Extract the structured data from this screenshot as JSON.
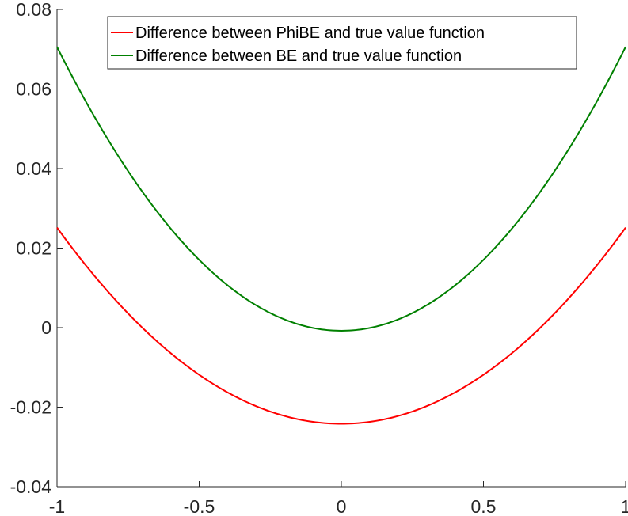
{
  "chart_data": {
    "type": "line",
    "title": "",
    "xlabel": "",
    "ylabel": "",
    "xlim": [
      -1,
      1
    ],
    "ylim": [
      -0.04,
      0.08
    ],
    "xticks": [
      -1,
      -0.5,
      0,
      0.5,
      1
    ],
    "xtick_labels": [
      "-1",
      "-0.5",
      "0",
      "0.5",
      "1"
    ],
    "yticks": [
      -0.04,
      -0.02,
      0,
      0.02,
      0.04,
      0.06,
      0.08
    ],
    "ytick_labels": [
      "-0.04",
      "-0.02",
      "0",
      "0.02",
      "0.04",
      "0.06",
      "0.08"
    ],
    "grid": false,
    "legend_position": "top",
    "series": [
      {
        "name": "Difference between PhiBE and true value function",
        "color": "#ff0000",
        "x": [
          -1,
          -0.9,
          -0.8,
          -0.7,
          -0.6,
          -0.5,
          -0.4,
          -0.3,
          -0.2,
          -0.1,
          0,
          0.1,
          0.2,
          0.3,
          0.4,
          0.5,
          0.6,
          0.7,
          0.8,
          0.9,
          1
        ],
        "y": [
          0.0245,
          0.0157,
          0.0077,
          0.0005,
          -0.0059,
          -0.0114,
          -0.0161,
          -0.02,
          -0.0227,
          -0.024,
          -0.0245,
          -0.024,
          -0.0227,
          -0.02,
          -0.0161,
          -0.0114,
          -0.0059,
          0.0005,
          0.0077,
          0.0157,
          0.0245
        ]
      },
      {
        "name": "Difference between BE and true value function",
        "color": "#008000",
        "x": [
          -1,
          -0.9,
          -0.8,
          -0.7,
          -0.6,
          -0.5,
          -0.4,
          -0.3,
          -0.2,
          -0.1,
          0,
          0.1,
          0.2,
          0.3,
          0.4,
          0.5,
          0.6,
          0.7,
          0.8,
          0.9,
          1
        ],
        "y": [
          0.0705,
          0.057,
          0.045,
          0.0343,
          0.025,
          0.0171,
          0.0105,
          0.0055,
          0.0018,
          0.0,
          -0.0003,
          0.0,
          0.0018,
          0.0055,
          0.0105,
          0.0171,
          0.025,
          0.0343,
          0.045,
          0.057,
          0.0705
        ]
      }
    ]
  }
}
